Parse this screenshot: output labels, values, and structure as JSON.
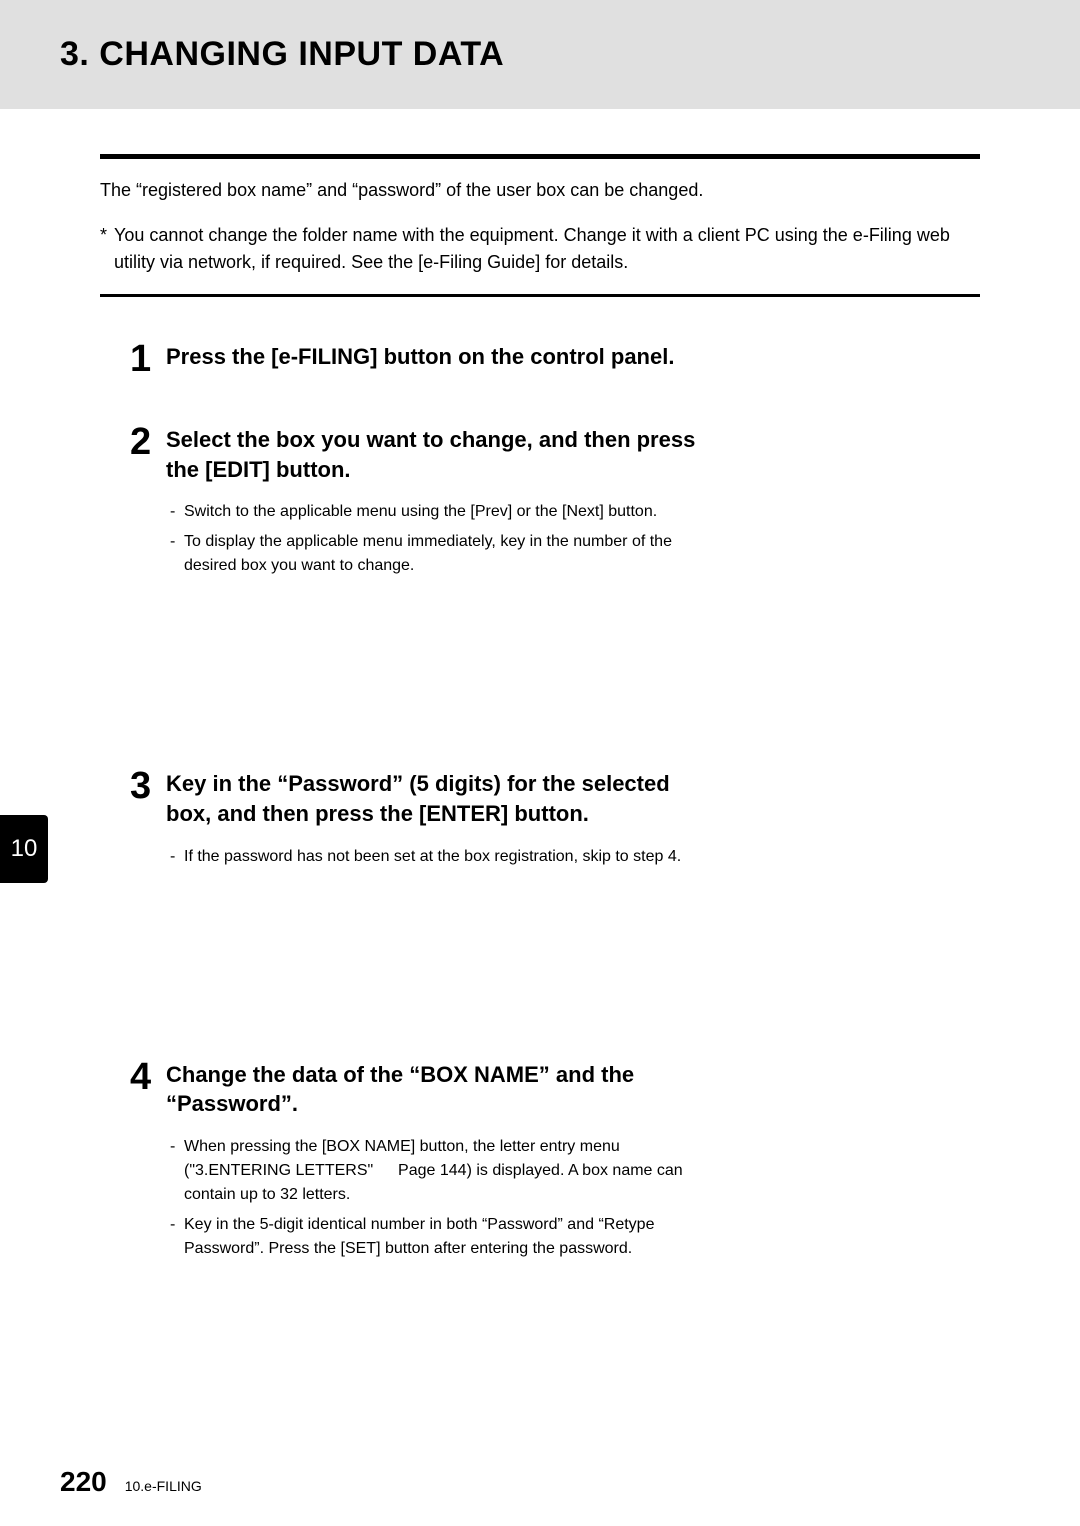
{
  "header": {
    "title": "3. CHANGING INPUT DATA"
  },
  "intro": "The “registered box name” and “password” of the user box can be changed.",
  "note": {
    "asterisk": "*",
    "text": "You cannot change the folder name with the equipment. Change it with a client PC using the e-Filing web utility via network, if required. See the [e-Filing Guide] for details."
  },
  "steps": [
    {
      "num": "1",
      "title": "Press the [e-FILING] button on the control panel.",
      "items": []
    },
    {
      "num": "2",
      "title": "Select the box you want to change, and then press the [EDIT] button.",
      "items": [
        "Switch to the applicable menu using the [Prev] or the [Next] button.",
        "To display the applicable menu immediately, key in the number of the desired box you want to change."
      ]
    },
    {
      "num": "3",
      "title": "Key in the “Password” (5 digits) for the selected box, and then press the [ENTER] button.",
      "items": [
        "If the password has not been set at the box registration, skip to step 4."
      ]
    },
    {
      "num": "4",
      "title": "Change the data of the “BOX NAME” and the “Password”.",
      "items": [
        "When pressing the [BOX NAME] button, the letter entry menu (\"3.ENTERING LETTERS\"   Page 144) is displayed. A box name can contain up to 32 letters.",
        "Key in the 5-digit identical number in both “Password” and “Retype Password”. Press the [SET] button after entering the password."
      ]
    }
  ],
  "chapterTab": "10",
  "footer": {
    "page": "220",
    "label": "10.e-FILING"
  },
  "dash": "-"
}
